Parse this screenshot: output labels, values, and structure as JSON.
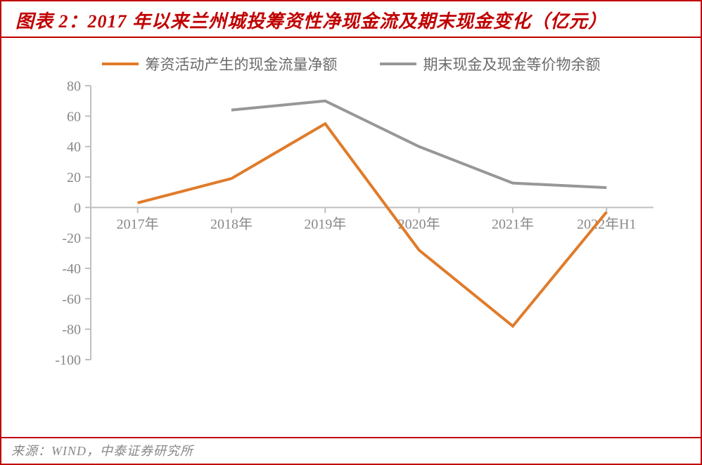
{
  "title": "图表 2：2017 年以来兰州城投筹资性净现金流及期末现金变化（亿元）",
  "source": "来源：WIND，中泰证券研究所",
  "legend": {
    "series1": "筹资活动产生的现金流量净额",
    "series2": "期末现金及现金等价物余额"
  },
  "chart": {
    "type": "line",
    "categories": [
      "2017年",
      "2018年",
      "2019年",
      "2020年",
      "2021年",
      "2022年H1"
    ],
    "series": [
      {
        "key": "series1",
        "values": [
          3,
          19,
          55,
          -28,
          -78,
          -3
        ],
        "color": "#e07b2a",
        "width": 4
      },
      {
        "key": "series2",
        "values": [
          null,
          64,
          70,
          40,
          16,
          13
        ],
        "color": "#979797",
        "width": 4
      }
    ],
    "y": {
      "min": -100,
      "max": 80,
      "step": 20
    },
    "colors": {
      "axis": "#bfbfbf",
      "tick_text": "#888888",
      "background": "#ffffff"
    },
    "tick_fontsize": 20,
    "title_color": "#c00000",
    "title_fontsize": 26,
    "legend_fontsize": 21
  }
}
